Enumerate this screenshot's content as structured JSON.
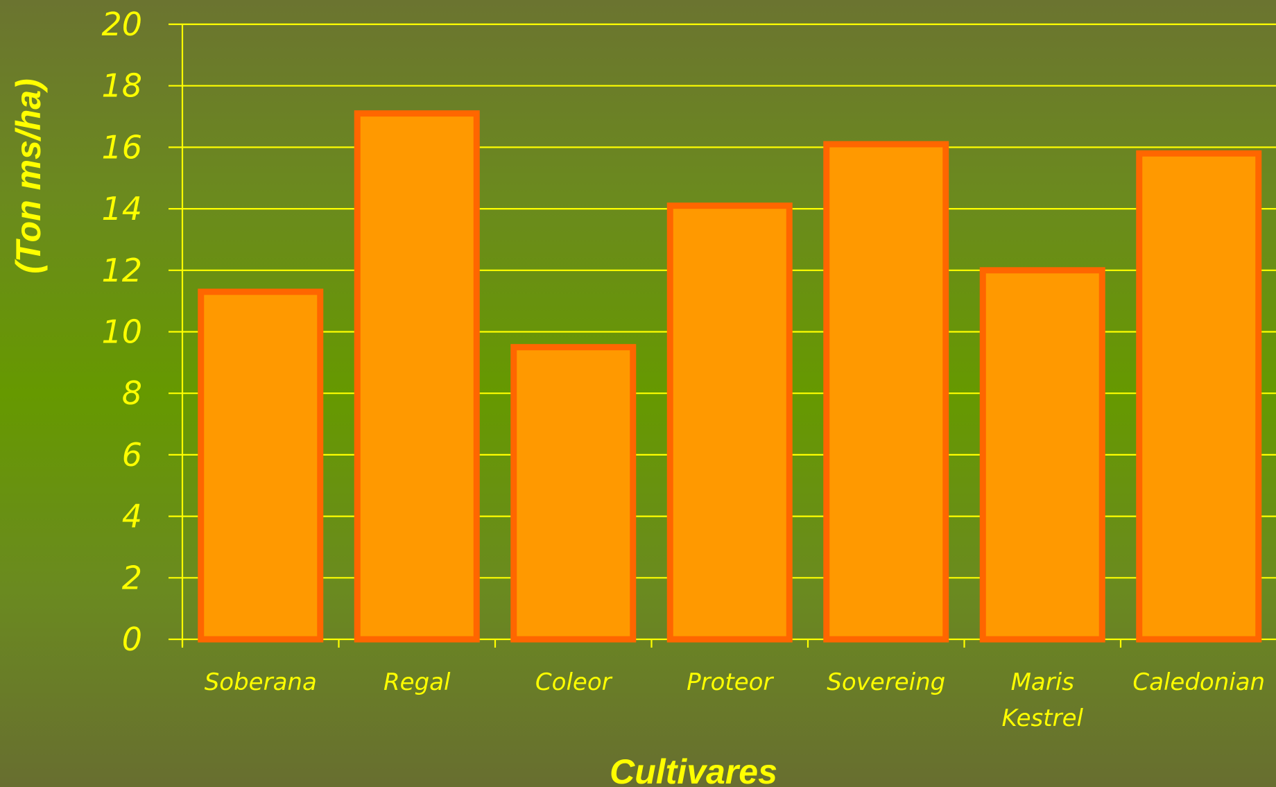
{
  "chart_data": {
    "type": "bar",
    "title": "",
    "xlabel": "Cultivares",
    "ylabel": "(Ton ms/ha)",
    "categories": [
      [
        "Soberana"
      ],
      [
        "Regal"
      ],
      [
        "Coleor"
      ],
      [
        "Proteor"
      ],
      [
        "Sovereing"
      ],
      [
        "Maris",
        "Kestrel"
      ],
      [
        "Caledonian"
      ]
    ],
    "values": [
      11.3,
      17.1,
      9.5,
      14.1,
      16.1,
      12.0,
      15.8
    ],
    "ylim": [
      0,
      20
    ],
    "yticks": [
      "0",
      "2",
      "4",
      "6",
      "8",
      "10",
      "12",
      "14",
      "16",
      "18",
      "20"
    ],
    "grid": true,
    "legend": "none",
    "colors": {
      "bar_fill": "#ff9900",
      "bar_stroke": "#ff6600",
      "grid": "#ffff00",
      "text": "#ffff00"
    }
  }
}
